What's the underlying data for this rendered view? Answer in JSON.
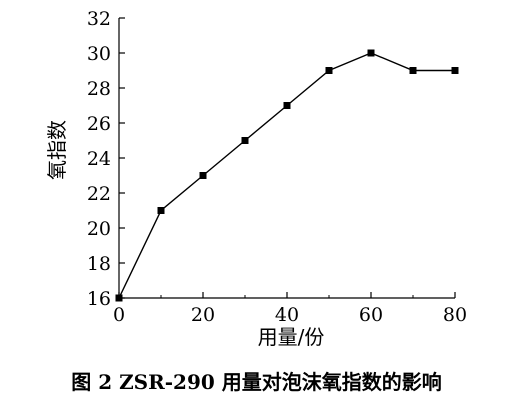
{
  "caption": "图 2   ZSR-290 用量对泡沫氧指数的影响",
  "chart_data": {
    "type": "line",
    "title": "",
    "xlabel": "用量/份",
    "ylabel": "氧指数",
    "xlim": [
      0,
      80
    ],
    "ylim": [
      16,
      32
    ],
    "xticks": [
      0,
      20,
      40,
      60,
      80
    ],
    "yticks": [
      16,
      18,
      20,
      22,
      24,
      26,
      28,
      30,
      32
    ],
    "grid": false,
    "series": [
      {
        "x": [
          0,
          10,
          20,
          30,
          40,
          50,
          60,
          70,
          80
        ],
        "y": [
          16,
          21,
          23,
          25,
          27,
          29,
          30,
          29,
          29
        ]
      }
    ]
  }
}
